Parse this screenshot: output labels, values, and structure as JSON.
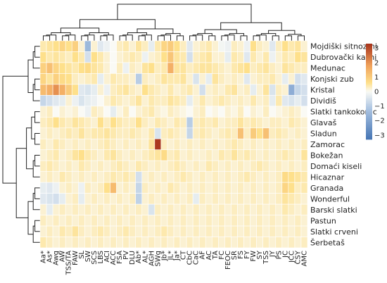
{
  "chart_data": {
    "type": "heatmap",
    "rows": [
      "Mojdiški sitnozrni",
      "Dubrovački kasni",
      "Medunac",
      "Konjski zub",
      "Kristal",
      "Dividiš",
      "Slatki tankokorac",
      "Glavaš",
      "Sladun",
      "Zamorac",
      "Bokežan",
      "Domaći kiseli",
      "Hicaznar",
      "Granada",
      "Wonderful",
      "Barski slatki",
      "Pastun",
      "Slatki crveni",
      "Šerbetaš"
    ],
    "columns": [
      "Aa*",
      "As*",
      "Awg",
      "AW",
      "TSS/TA",
      "FAW",
      "SL",
      "SW",
      "SCS",
      "LBS",
      "ACI",
      "ACC",
      "FSA",
      "PV",
      "DLU",
      "Ab*",
      "AL*",
      "AGH",
      "SWg",
      "Jb*",
      "JL*",
      "Ja*",
      "CT",
      "CbC",
      "CaC",
      "AF",
      "AC",
      "TA",
      "FC",
      "FEOC",
      "SR",
      "FS",
      "FY",
      "FW",
      "SY",
      "TSS",
      "JY",
      "PS",
      "JC",
      "JCC",
      "CSY",
      "AMC"
    ],
    "legend": {
      "ticks": [
        3,
        2,
        1,
        0,
        -1,
        -2,
        -3
      ],
      "min": -3.3,
      "max": 3.3
    },
    "values": [
      [
        0.4,
        0.5,
        0.6,
        0.8,
        0.6,
        0.9,
        0.2,
        -1.5,
        0.2,
        -0.4,
        -0.2,
        0.0,
        0.3,
        0.4,
        0.2,
        0.5,
        0.3,
        -0.3,
        0.4,
        0.8,
        1.0,
        0.6,
        0.3,
        -0.4,
        0.2,
        0.3,
        0.4,
        0.2,
        -0.1,
        -0.2,
        0.3,
        0.2,
        -0.2,
        0.6,
        0.3,
        0.2,
        -0.4,
        0.3,
        0.6,
        0.4,
        0.5,
        0.2
      ],
      [
        0.6,
        0.4,
        0.5,
        0.4,
        0.3,
        0.6,
        0.4,
        -0.6,
        0.6,
        0.4,
        0.2,
        0.0,
        0.2,
        0.3,
        0.4,
        0.3,
        -0.2,
        0.2,
        0.3,
        0.6,
        1.1,
        0.5,
        0.4,
        -0.6,
        0.3,
        0.4,
        0.5,
        0.2,
        0.2,
        -0.3,
        0.4,
        0.3,
        -0.4,
        0.4,
        0.2,
        0.4,
        -0.2,
        0.2,
        0.4,
        0.3,
        0.6,
        0.5
      ],
      [
        0.9,
        1.2,
        0.8,
        0.6,
        0.5,
        0.4,
        0.6,
        0.7,
        0.5,
        0.4,
        0.2,
        0.0,
        0.3,
        -0.2,
        0.3,
        0.2,
        0.5,
        0.6,
        0.3,
        0.4,
        1.5,
        0.5,
        0.5,
        0.3,
        0.4,
        0.5,
        0.5,
        0.4,
        0.3,
        0.2,
        0.4,
        0.5,
        0.6,
        0.3,
        0.4,
        0.5,
        0.3,
        0.2,
        0.5,
        0.4,
        0.3,
        0.3
      ],
      [
        0.8,
        0.5,
        0.9,
        0.7,
        0.6,
        0.3,
        0.2,
        0.3,
        0.4,
        -0.3,
        0.2,
        0.4,
        0.3,
        0.3,
        0.2,
        -1.0,
        0.3,
        0.2,
        0.3,
        0.5,
        0.4,
        0.4,
        0.5,
        0.2,
        -0.5,
        0.2,
        -0.3,
        0.5,
        0.3,
        0.2,
        0.3,
        0.2,
        -0.4,
        0.2,
        0.3,
        0.3,
        0.4,
        0.2,
        -0.3,
        0.2,
        -0.6,
        -0.4
      ],
      [
        1.3,
        1.5,
        2.0,
        1.5,
        1.0,
        0.6,
        -0.4,
        -0.5,
        -0.3,
        0.2,
        -0.2,
        0.3,
        0.4,
        0.5,
        0.3,
        0.2,
        0.6,
        0.4,
        0.3,
        0.2,
        0.4,
        0.2,
        0.3,
        0.4,
        0.2,
        -0.6,
        0.2,
        0.3,
        0.2,
        0.4,
        0.5,
        0.2,
        0.3,
        -0.3,
        0.2,
        0.5,
        -0.5,
        0.3,
        0.2,
        -1.8,
        -0.8,
        -0.6
      ],
      [
        -0.8,
        -0.6,
        -0.4,
        -0.3,
        0.2,
        -0.2,
        -0.5,
        -0.3,
        -0.2,
        0.0,
        0.2,
        0.4,
        0.3,
        0.2,
        0.3,
        0.5,
        0.2,
        0.4,
        0.3,
        0.3,
        0.5,
        0.4,
        0.3,
        -0.3,
        0.2,
        0.4,
        0.2,
        0.3,
        0.4,
        0.3,
        0.2,
        0.3,
        0.2,
        0.4,
        0.2,
        0.3,
        -0.3,
        0.4,
        -0.4,
        -0.5,
        -0.3,
        -0.6
      ],
      [
        0.2,
        0.3,
        0.0,
        0.2,
        0.1,
        0.2,
        0.0,
        -0.2,
        0.3,
        0.2,
        0.0,
        -0.3,
        0.1,
        0.3,
        0.0,
        0.2,
        0.3,
        0.4,
        0.2,
        0.1,
        0.3,
        0.2,
        0.1,
        0.0,
        0.2,
        0.3,
        0.0,
        0.1,
        0.0,
        0.2,
        0.1,
        0.3,
        0.0,
        0.2,
        0.1,
        0.3,
        0.0,
        0.1,
        0.2,
        0.3,
        0.2,
        0.0
      ],
      [
        0.3,
        0.4,
        0.6,
        0.4,
        0.3,
        0.5,
        0.4,
        0.3,
        0.2,
        0.6,
        0.3,
        0.6,
        0.4,
        0.3,
        0.3,
        0.6,
        0.3,
        0.2,
        0.4,
        0.3,
        0.2,
        0.4,
        0.3,
        -1.0,
        0.3,
        0.4,
        0.3,
        0.4,
        0.2,
        0.3,
        0.3,
        0.5,
        0.3,
        0.4,
        0.3,
        0.2,
        0.3,
        0.3,
        0.2,
        0.4,
        0.3,
        0.2
      ],
      [
        0.2,
        0.3,
        0.2,
        0.3,
        0.4,
        0.3,
        0.5,
        0.3,
        0.4,
        0.4,
        0.5,
        0.4,
        0.3,
        0.3,
        0.4,
        0.3,
        0.2,
        0.4,
        -0.5,
        0.3,
        0.4,
        0.3,
        0.2,
        -0.8,
        0.3,
        0.4,
        0.3,
        0.2,
        0.3,
        0.4,
        0.3,
        1.2,
        0.3,
        1.0,
        0.6,
        1.2,
        0.3,
        0.4,
        0.3,
        0.2,
        0.3,
        0.2
      ],
      [
        0.3,
        0.2,
        0.4,
        0.3,
        0.2,
        0.3,
        0.2,
        0.3,
        0.2,
        0.3,
        0.4,
        0.3,
        0.2,
        0.3,
        0.2,
        0.3,
        0.2,
        0.5,
        3.2,
        0.3,
        0.2,
        0.3,
        0.2,
        0.3,
        0.2,
        0.3,
        0.2,
        0.3,
        0.2,
        0.3,
        0.4,
        0.3,
        0.2,
        0.3,
        0.2,
        0.3,
        0.2,
        0.3,
        0.2,
        0.3,
        0.2,
        0.3
      ],
      [
        0.2,
        0.3,
        0.4,
        0.2,
        0.3,
        0.5,
        0.6,
        0.4,
        0.3,
        0.2,
        0.4,
        0.5,
        0.3,
        0.2,
        0.3,
        0.2,
        0.3,
        0.4,
        0.5,
        0.7,
        0.3,
        0.4,
        0.2,
        0.3,
        0.2,
        0.2,
        0.3,
        0.2,
        0.4,
        0.3,
        0.5,
        0.3,
        0.4,
        0.3,
        0.2,
        0.3,
        0.2,
        0.3,
        0.4,
        0.3,
        0.2,
        0.5
      ],
      [
        0.3,
        0.4,
        0.3,
        0.2,
        0.3,
        0.2,
        0.4,
        0.3,
        0.2,
        0.3,
        0.2,
        0.3,
        0.4,
        0.3,
        0.2,
        0.4,
        0.3,
        0.2,
        0.3,
        0.2,
        0.3,
        0.4,
        0.3,
        0.2,
        0.3,
        0.2,
        0.4,
        0.3,
        0.2,
        0.3,
        0.2,
        0.3,
        0.2,
        0.3,
        0.4,
        0.3,
        0.2,
        0.3,
        0.2,
        0.3,
        0.2,
        0.3
      ],
      [
        0.2,
        0.3,
        0.2,
        0.4,
        0.3,
        0.2,
        0.3,
        0.2,
        0.3,
        0.2,
        0.3,
        0.4,
        0.3,
        0.4,
        0.3,
        -0.6,
        0.2,
        0.3,
        0.2,
        0.3,
        0.2,
        0.3,
        0.4,
        0.3,
        0.2,
        0.3,
        0.2,
        0.3,
        0.2,
        0.3,
        0.2,
        0.3,
        0.4,
        0.3,
        0.2,
        0.3,
        0.2,
        0.3,
        0.7,
        0.6,
        0.5,
        0.4
      ],
      [
        -0.3,
        -0.4,
        -0.2,
        0.2,
        0.3,
        0.2,
        -0.2,
        0.3,
        0.2,
        0.3,
        0.6,
        1.3,
        0.2,
        0.3,
        0.2,
        -0.8,
        0.3,
        0.2,
        0.3,
        0.2,
        0.4,
        0.3,
        0.2,
        0.3,
        0.2,
        0.3,
        0.2,
        0.3,
        0.2,
        0.3,
        0.2,
        0.3,
        0.2,
        0.3,
        0.2,
        0.3,
        0.2,
        0.3,
        0.8,
        0.6,
        0.3,
        0.4
      ],
      [
        -0.4,
        -0.5,
        -0.6,
        -0.3,
        0.2,
        0.3,
        -0.3,
        0.2,
        0.3,
        0.2,
        0.3,
        0.2,
        0.3,
        0.2,
        0.3,
        -0.9,
        0.2,
        0.3,
        0.2,
        0.3,
        0.2,
        0.3,
        0.2,
        0.3,
        -0.3,
        0.3,
        0.2,
        0.3,
        0.2,
        0.3,
        0.2,
        0.3,
        0.2,
        0.3,
        0.2,
        0.3,
        0.2,
        0.3,
        0.5,
        0.4,
        0.3,
        0.2
      ],
      [
        0.2,
        -0.3,
        0.2,
        0.3,
        0.2,
        0.3,
        0.2,
        0.3,
        0.2,
        0.3,
        0.2,
        0.3,
        0.2,
        0.3,
        0.2,
        0.3,
        0.2,
        -0.5,
        0.3,
        0.2,
        0.3,
        0.2,
        0.3,
        0.2,
        0.3,
        0.2,
        0.3,
        0.2,
        0.3,
        0.2,
        0.3,
        0.2,
        0.3,
        0.2,
        0.3,
        0.2,
        0.3,
        0.2,
        0.4,
        0.3,
        0.2,
        0.3
      ],
      [
        0.3,
        0.2,
        0.3,
        0.2,
        0.3,
        0.2,
        0.3,
        0.2,
        0.3,
        0.2,
        0.3,
        0.2,
        0.3,
        0.2,
        0.3,
        0.2,
        0.3,
        0.2,
        0.3,
        0.2,
        0.3,
        0.2,
        0.3,
        0.2,
        0.3,
        0.2,
        0.3,
        0.2,
        0.3,
        0.2,
        0.3,
        0.2,
        0.3,
        0.2,
        0.3,
        0.2,
        0.3,
        0.2,
        0.3,
        0.2,
        0.3,
        0.2
      ],
      [
        0.2,
        0.3,
        0.2,
        0.4,
        0.3,
        0.5,
        0.3,
        0.2,
        0.3,
        0.4,
        0.3,
        0.2,
        0.3,
        0.4,
        0.3,
        0.2,
        0.3,
        0.2,
        0.3,
        0.4,
        0.3,
        0.2,
        0.3,
        0.2,
        0.3,
        0.2,
        0.3,
        0.2,
        0.3,
        0.2,
        0.3,
        0.2,
        0.3,
        0.2,
        0.3,
        0.2,
        0.3,
        0.2,
        0.3,
        0.2,
        0.3,
        0.2
      ],
      [
        0.4,
        0.3,
        0.2,
        0.3,
        0.2,
        0.3,
        0.2,
        0.3,
        0.2,
        0.3,
        0.2,
        0.3,
        0.2,
        0.3,
        0.2,
        0.3,
        0.2,
        0.3,
        0.2,
        0.3,
        0.2,
        0.3,
        0.2,
        0.3,
        0.2,
        0.3,
        0.2,
        0.3,
        0.2,
        0.3,
        0.2,
        0.3,
        0.2,
        0.3,
        0.2,
        0.3,
        0.2,
        0.3,
        0.2,
        0.3,
        0.2,
        0.3
      ]
    ]
  }
}
